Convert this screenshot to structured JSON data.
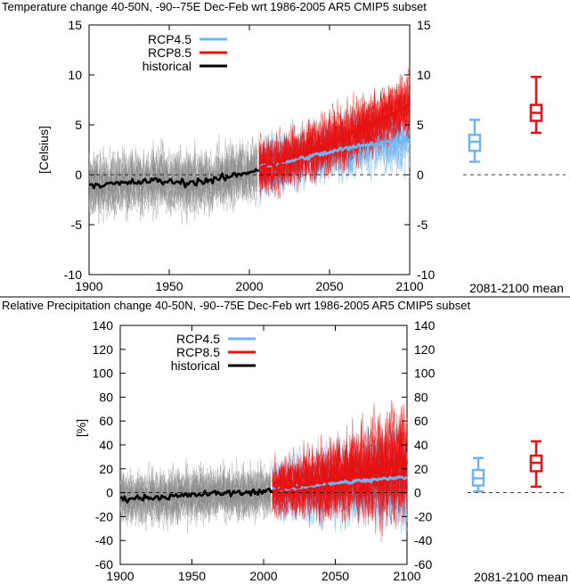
{
  "colors": {
    "rcp45": "#6fb4f0",
    "rcp85": "#e81010",
    "historical": "#000000",
    "ensemble_grey": "#888888"
  },
  "chart_data": [
    {
      "type": "line",
      "title": "Temperature change 40-50N, -90--75E Dec-Feb wrt 1986-2005 AR5 CMIP5 subset",
      "ylabel": "[Celsius]",
      "xlim": [
        1900,
        2100
      ],
      "ylim": [
        -10,
        15
      ],
      "xticks": [
        "1900",
        "1950",
        "2000",
        "2050",
        "2100"
      ],
      "yticks": [
        "-10",
        "-5",
        "0",
        "5",
        "10",
        "15"
      ],
      "legend_placement": "top-left",
      "series": [
        {
          "name": "RCP4.5",
          "x": [
            2006,
            2020,
            2040,
            2060,
            2080,
            2100
          ],
          "values": [
            0.8,
            1.2,
            1.9,
            2.6,
            3.2,
            3.5
          ]
        },
        {
          "name": "RCP8.5",
          "x": [
            2006,
            2020,
            2040,
            2060,
            2080,
            2100
          ],
          "values": [
            0.8,
            1.4,
            2.5,
            3.9,
            5.4,
            7.0
          ]
        },
        {
          "name": "historical",
          "x": [
            1900,
            1920,
            1940,
            1960,
            1980,
            2000,
            2006
          ],
          "values": [
            -1.0,
            -0.9,
            -0.6,
            -0.8,
            -0.5,
            0.3,
            0.6
          ]
        }
      ],
      "summary_label": "2081-2100 mean",
      "boxes": [
        {
          "series": "RCP4.5",
          "min": 1.3,
          "q1": 2.4,
          "median": 3.3,
          "q3": 4.0,
          "max": 5.5
        },
        {
          "series": "RCP8.5",
          "min": 4.2,
          "q1": 5.4,
          "median": 6.2,
          "q3": 7.0,
          "max": 9.8
        }
      ]
    },
    {
      "type": "line",
      "title": "Relative Precipitation change 40-50N, -90--75E Dec-Feb wrt 1986-2005 AR5 CMIP5 subset",
      "ylabel": "[%]",
      "xlim": [
        1900,
        2100
      ],
      "ylim": [
        -60,
        140
      ],
      "xticks": [
        "1900",
        "1950",
        "2000",
        "2050",
        "2100"
      ],
      "yticks": [
        "-60",
        "-40",
        "-20",
        "0",
        "20",
        "40",
        "60",
        "80",
        "100",
        "120",
        "140"
      ],
      "legend_placement": "top-left",
      "series": [
        {
          "name": "RCP4.5",
          "x": [
            2006,
            2020,
            2040,
            2060,
            2080,
            2100
          ],
          "values": [
            2,
            4,
            7,
            9,
            11,
            13
          ]
        },
        {
          "name": "RCP8.5",
          "x": [
            2006,
            2020,
            2040,
            2060,
            2080,
            2100
          ],
          "values": [
            2,
            5,
            9,
            14,
            19,
            25
          ]
        },
        {
          "name": "historical",
          "x": [
            1900,
            1920,
            1940,
            1960,
            1980,
            2000,
            2006
          ],
          "values": [
            -5,
            -4,
            -3,
            -1,
            0,
            1,
            2
          ]
        }
      ],
      "summary_label": "2081-2100 mean",
      "boxes": [
        {
          "series": "RCP4.5",
          "min": 1,
          "q1": 6,
          "median": 12,
          "q3": 19,
          "max": 29
        },
        {
          "series": "RCP8.5",
          "min": 5,
          "q1": 18,
          "median": 25,
          "q3": 31,
          "max": 43
        }
      ]
    }
  ]
}
